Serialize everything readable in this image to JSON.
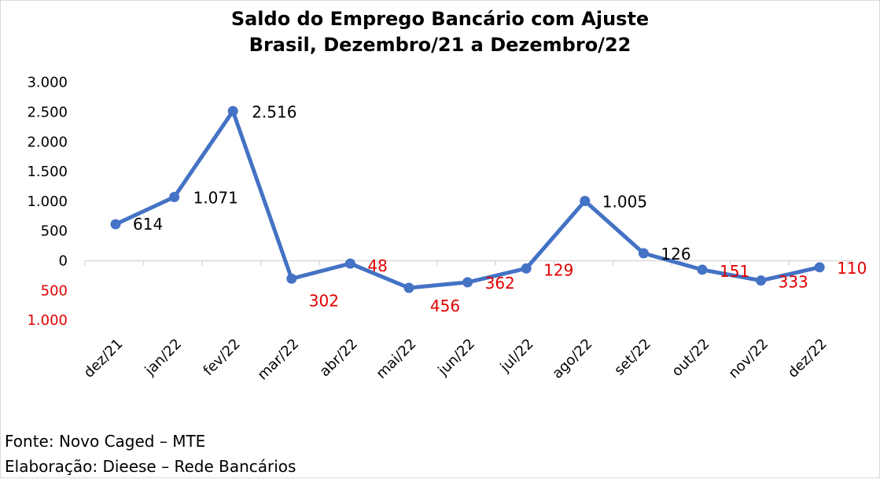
{
  "chart_data": {
    "type": "line",
    "title": "Saldo do Emprego Bancário com Ajuste",
    "subtitle": "Brasil, Dezembro/21 a Dezembro/22",
    "xlabel": "",
    "ylabel": "",
    "categories": [
      "dez/21",
      "jan/22",
      "fev/22",
      "mar/22",
      "abr/22",
      "mai/22",
      "jun/22",
      "jul/22",
      "ago/22",
      "set/22",
      "out/22",
      "nov/22",
      "dez/22"
    ],
    "series": [
      {
        "values": [
          614,
          1071,
          2516,
          -302,
          -48,
          -456,
          -362,
          -129,
          1005,
          126,
          -151,
          -333,
          -110
        ]
      }
    ],
    "data_labels": [
      "614",
      "1.071",
      "2.516",
      "302",
      "48",
      "456",
      "362",
      "129",
      "1.005",
      "126",
      "151",
      "333",
      "110"
    ],
    "y_ticks": [
      {
        "value": 3000,
        "label": "3.000"
      },
      {
        "value": 2500,
        "label": "2.500"
      },
      {
        "value": 2000,
        "label": "2.000"
      },
      {
        "value": 1500,
        "label": "1.500"
      },
      {
        "value": 1000,
        "label": "1.000"
      },
      {
        "value": 500,
        "label": "500"
      },
      {
        "value": 0,
        "label": "0"
      },
      {
        "value": -500,
        "label": "500"
      },
      {
        "value": -1000,
        "label": "1.000"
      }
    ],
    "ylim": [
      -1000,
      3000
    ],
    "grid": false,
    "legend": "none",
    "colors": {
      "line": "#4472c4",
      "positive_label": "#000000",
      "negative_label": "#e00000",
      "axis": "#d9d9d9"
    }
  },
  "footer": {
    "source": "Fonte: Novo Caged – MTE",
    "credits": "Elaboração: Dieese – Rede Bancários"
  }
}
